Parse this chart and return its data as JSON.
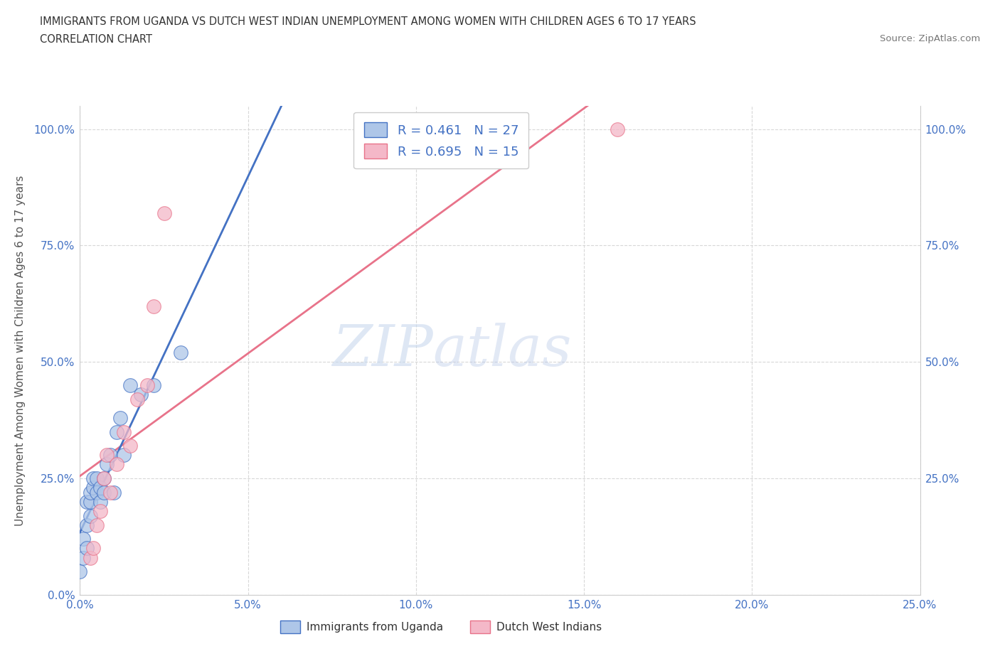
{
  "title_line1": "IMMIGRANTS FROM UGANDA VS DUTCH WEST INDIAN UNEMPLOYMENT AMONG WOMEN WITH CHILDREN AGES 6 TO 17 YEARS",
  "title_line2": "CORRELATION CHART",
  "source_text": "Source: ZipAtlas.com",
  "ylabel": "Unemployment Among Women with Children Ages 6 to 17 years",
  "watermark_zip": "ZIP",
  "watermark_atlas": "atlas",
  "xlim": [
    0.0,
    0.25
  ],
  "ylim": [
    0.0,
    1.05
  ],
  "xticks": [
    0.0,
    0.05,
    0.1,
    0.15,
    0.2,
    0.25
  ],
  "yticks": [
    0.0,
    0.25,
    0.5,
    0.75,
    1.0
  ],
  "xtick_labels": [
    "0.0%",
    "5.0%",
    "10.0%",
    "15.0%",
    "20.0%",
    "25.0%"
  ],
  "ytick_labels_left": [
    "0.0%",
    "25.0%",
    "50.0%",
    "75.0%",
    "100.0%"
  ],
  "ytick_labels_right": [
    "",
    "25.0%",
    "50.0%",
    "75.0%",
    "100.0%"
  ],
  "uganda_color": "#aec6e8",
  "dutch_color": "#f4b8c8",
  "uganda_line_color": "#4472c4",
  "dutch_line_color": "#e8738a",
  "uganda_R": 0.461,
  "uganda_N": 27,
  "dutch_R": 0.695,
  "dutch_N": 15,
  "uganda_scatter_x": [
    0.0,
    0.001,
    0.001,
    0.002,
    0.002,
    0.002,
    0.003,
    0.003,
    0.003,
    0.004,
    0.004,
    0.005,
    0.005,
    0.006,
    0.006,
    0.007,
    0.007,
    0.008,
    0.009,
    0.01,
    0.011,
    0.012,
    0.013,
    0.015,
    0.018,
    0.022,
    0.03
  ],
  "uganda_scatter_y": [
    0.05,
    0.08,
    0.12,
    0.1,
    0.15,
    0.2,
    0.17,
    0.2,
    0.22,
    0.23,
    0.25,
    0.22,
    0.25,
    0.2,
    0.23,
    0.22,
    0.25,
    0.28,
    0.3,
    0.22,
    0.35,
    0.38,
    0.3,
    0.45,
    0.43,
    0.45,
    0.52
  ],
  "dutch_scatter_x": [
    0.003,
    0.004,
    0.005,
    0.006,
    0.007,
    0.008,
    0.009,
    0.011,
    0.013,
    0.015,
    0.017,
    0.02,
    0.022,
    0.025,
    0.16
  ],
  "dutch_scatter_y": [
    0.08,
    0.1,
    0.15,
    0.18,
    0.25,
    0.3,
    0.22,
    0.28,
    0.35,
    0.32,
    0.42,
    0.45,
    0.62,
    0.82,
    1.0
  ],
  "background_color": "#ffffff",
  "grid_color": "#d8d8d8"
}
